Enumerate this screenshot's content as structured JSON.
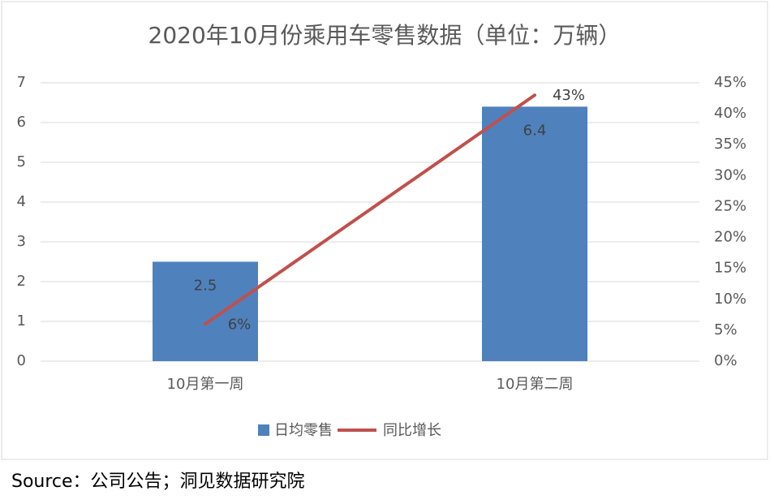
{
  "chart_data": {
    "type": "bar-line",
    "title": "2020年10月份乘用车零售数据（单位：万辆）",
    "categories": [
      "10月第一周",
      "10月第二周"
    ],
    "series": [
      {
        "name": "日均零售",
        "type": "bar",
        "color": "#4f81bd",
        "values": [
          2.5,
          6.4
        ]
      },
      {
        "name": "同比增长",
        "type": "line",
        "axis": "y2",
        "color": "#c0504d",
        "values": [
          6,
          43
        ],
        "value_labels": [
          "6%",
          "43%"
        ]
      }
    ],
    "ylim": [
      0,
      7
    ],
    "yticks": [
      0,
      1,
      2,
      3,
      4,
      5,
      6,
      7
    ],
    "y2lim": [
      0,
      45
    ],
    "y2ticks": [
      {
        "value": 0,
        "label": "0%"
      },
      {
        "value": 5,
        "label": "5%"
      },
      {
        "value": 10,
        "label": "10%"
      },
      {
        "value": 15,
        "label": "15%"
      },
      {
        "value": 20,
        "label": "20%"
      },
      {
        "value": 25,
        "label": "25%"
      },
      {
        "value": 30,
        "label": "30%"
      },
      {
        "value": 35,
        "label": "35%"
      },
      {
        "value": 40,
        "label": "40%"
      },
      {
        "value": 45,
        "label": "45%"
      }
    ],
    "grid": true,
    "legend": "bottom",
    "source": "Source：公司公告；洞见数据研究院"
  }
}
